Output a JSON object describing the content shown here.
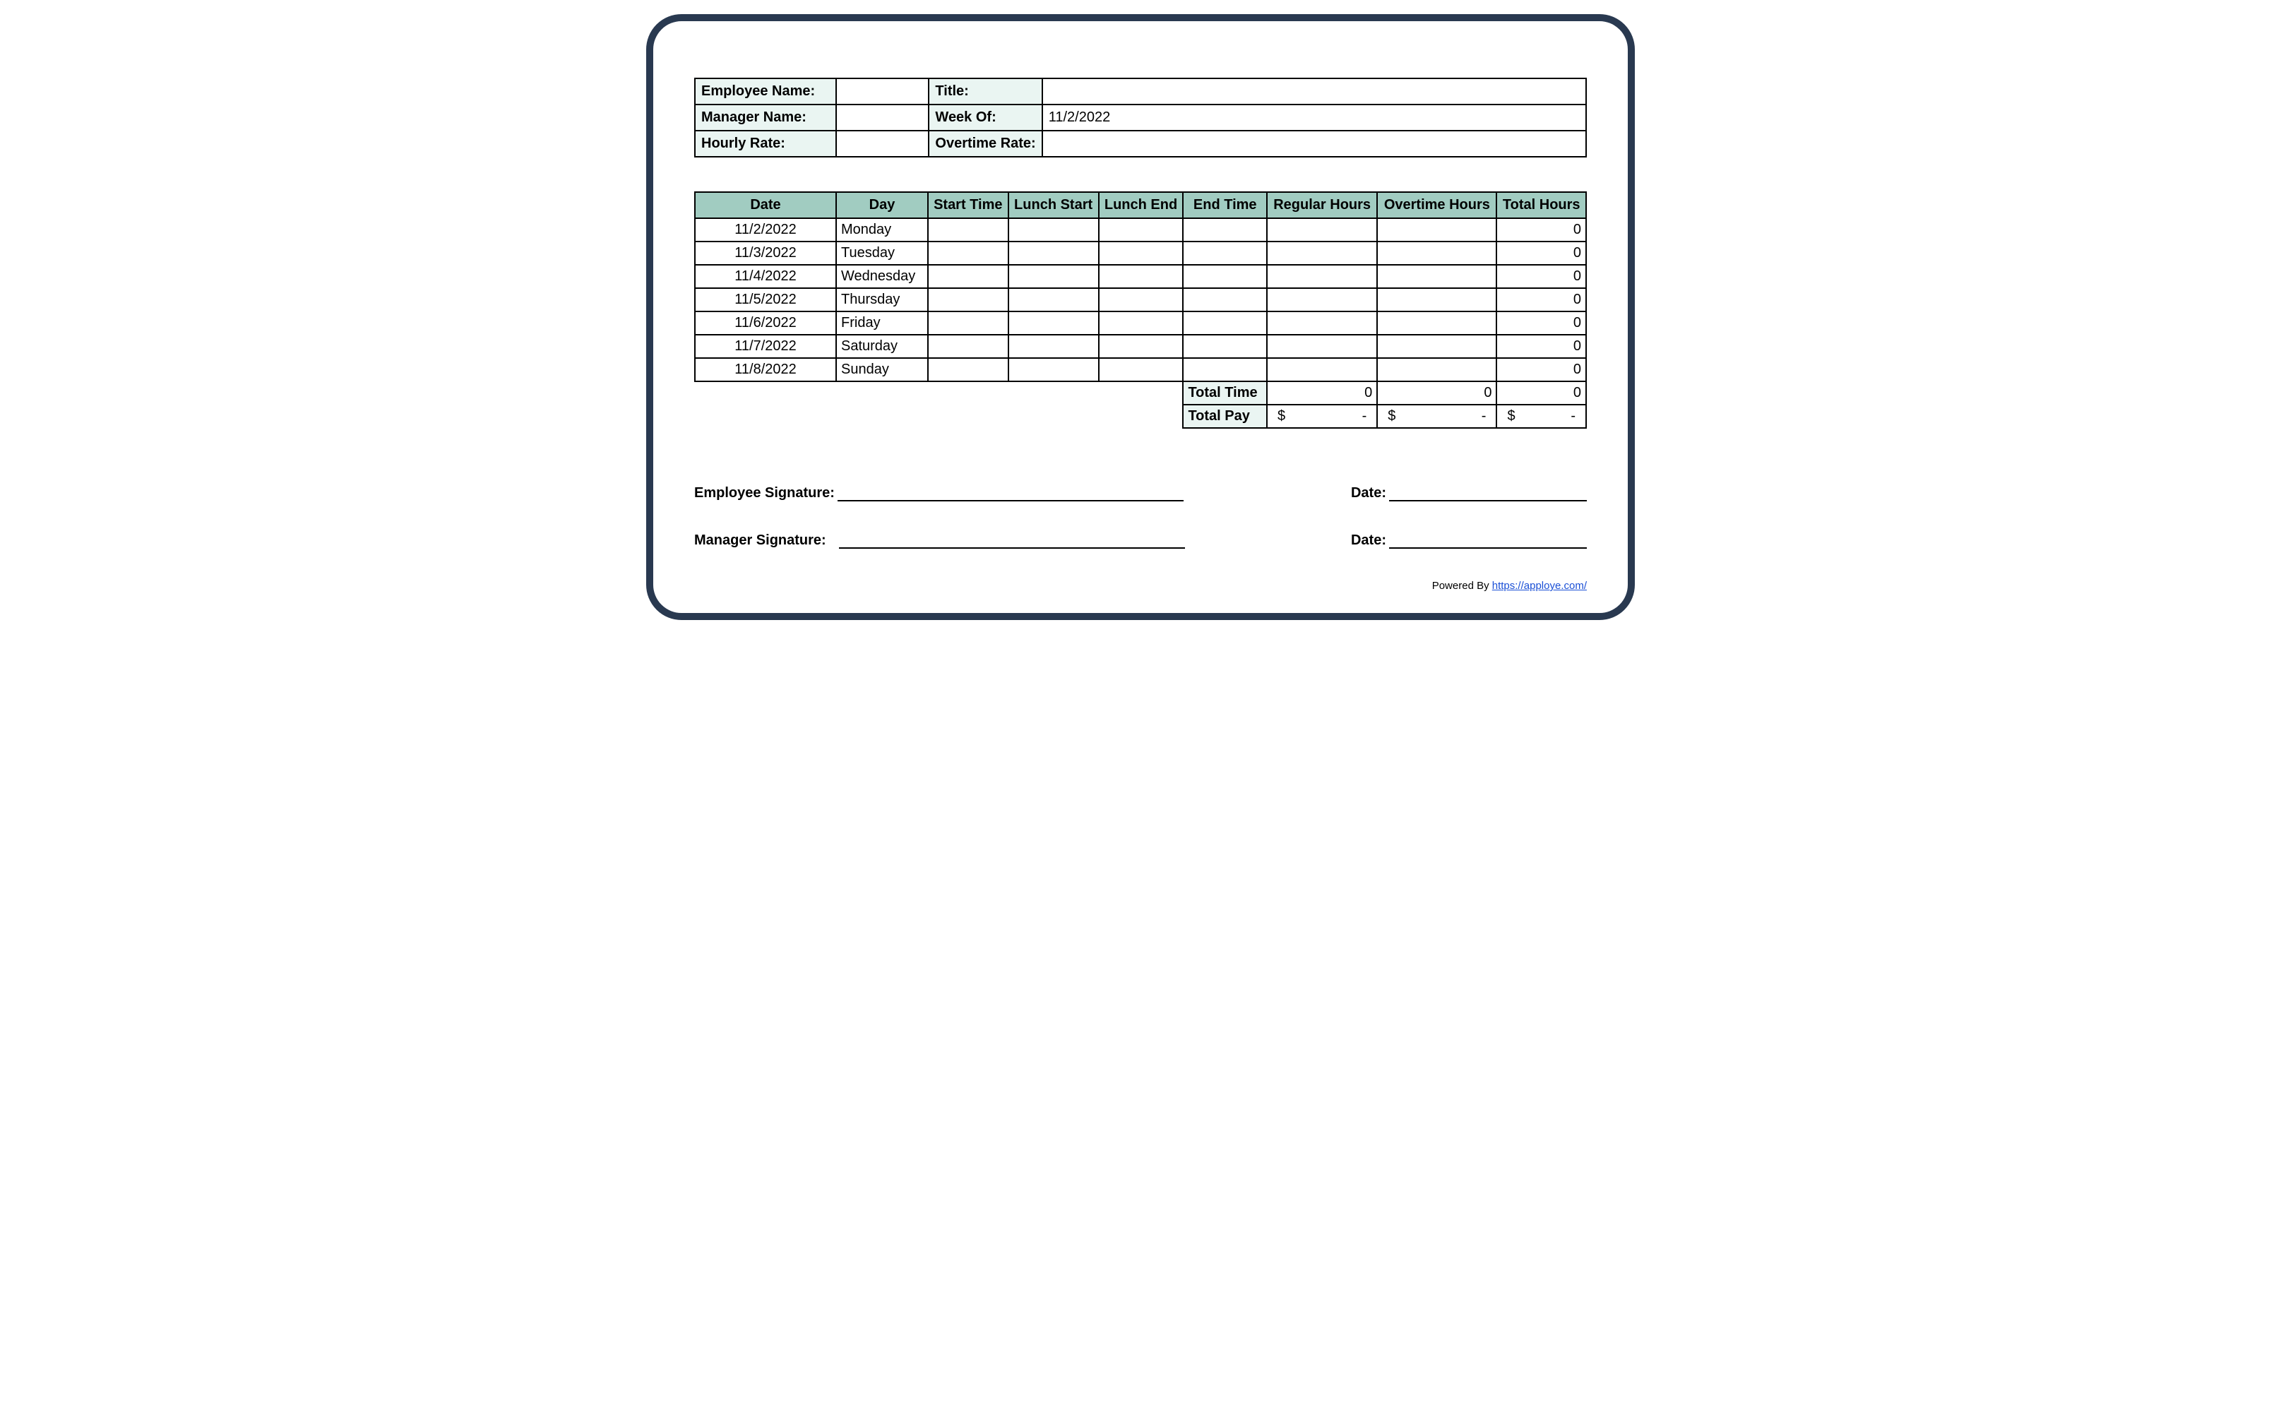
{
  "colors": {
    "frame_border": "#293950",
    "label_bg": "#eaf5f2",
    "header_bg": "#a1ccc1",
    "link": "#1a4fd6"
  },
  "info": {
    "employee_name_label": "Employee Name:",
    "employee_name_value": "",
    "title_label": "Title:",
    "title_value": "",
    "manager_name_label": "Manager Name:",
    "manager_name_value": "",
    "week_of_label": "Week Of:",
    "week_of_value": "11/2/2022",
    "hourly_rate_label": "Hourly Rate:",
    "hourly_rate_value": "",
    "overtime_rate_label": "Overtime Rate:",
    "overtime_rate_value": ""
  },
  "headers": {
    "date": "Date",
    "day": "Day",
    "start_time": "Start Time",
    "lunch_start": "Lunch Start",
    "lunch_end": "Lunch End",
    "end_time": "End Time",
    "regular_hours": "Regular Hours",
    "overtime_hours": "Overtime Hours",
    "total_hours": "Total Hours"
  },
  "rows": [
    {
      "date": "11/2/2022",
      "day": "Monday",
      "start": "",
      "lstart": "",
      "lend": "",
      "end": "",
      "reg": "",
      "ot": "",
      "total": "0"
    },
    {
      "date": "11/3/2022",
      "day": "Tuesday",
      "start": "",
      "lstart": "",
      "lend": "",
      "end": "",
      "reg": "",
      "ot": "",
      "total": "0"
    },
    {
      "date": "11/4/2022",
      "day": "Wednesday",
      "start": "",
      "lstart": "",
      "lend": "",
      "end": "",
      "reg": "",
      "ot": "",
      "total": "0"
    },
    {
      "date": "11/5/2022",
      "day": "Thursday",
      "start": "",
      "lstart": "",
      "lend": "",
      "end": "",
      "reg": "",
      "ot": "",
      "total": "0"
    },
    {
      "date": "11/6/2022",
      "day": "Friday",
      "start": "",
      "lstart": "",
      "lend": "",
      "end": "",
      "reg": "",
      "ot": "",
      "total": "0"
    },
    {
      "date": "11/7/2022",
      "day": "Saturday",
      "start": "",
      "lstart": "",
      "lend": "",
      "end": "",
      "reg": "",
      "ot": "",
      "total": "0"
    },
    {
      "date": "11/8/2022",
      "day": "Sunday",
      "start": "",
      "lstart": "",
      "lend": "",
      "end": "",
      "reg": "",
      "ot": "",
      "total": "0"
    }
  ],
  "totals": {
    "total_time_label": "Total Time",
    "total_time_reg": "0",
    "total_time_ot": "0",
    "total_time_total": "0",
    "total_pay_label": "Total Pay",
    "currency": "$",
    "dash": "-"
  },
  "signatures": {
    "employee_label": "Employee Signature:",
    "manager_label": "Manager Signature:",
    "date_label": "Date:"
  },
  "footer": {
    "powered_by": "Powered By ",
    "link_text": "https://apploye.com/"
  }
}
